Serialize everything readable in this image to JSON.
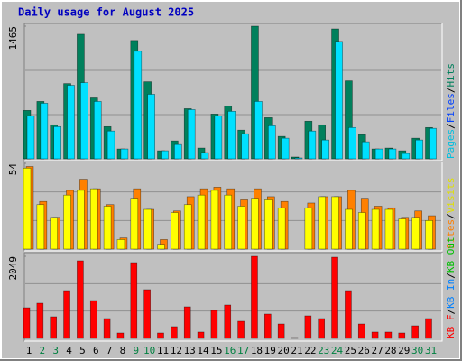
{
  "chart_data": [
    {
      "type": "bar",
      "title": "Daily usage for August 2025",
      "categories": [
        "1",
        "2",
        "3",
        "4",
        "5",
        "6",
        "7",
        "8",
        "9",
        "10",
        "11",
        "12",
        "13",
        "14",
        "15",
        "16",
        "17",
        "18",
        "19",
        "20",
        "21",
        "22",
        "23",
        "24",
        "25",
        "26",
        "27",
        "28",
        "29",
        "30",
        "31"
      ],
      "category_colors": [
        "#000000",
        "#008040",
        "#008040",
        "#000000",
        "#000000",
        "#000000",
        "#000000",
        "#000000",
        "#008040",
        "#008040",
        "#000000",
        "#000000",
        "#000000",
        "#000000",
        "#000000",
        "#008040",
        "#008040",
        "#000000",
        "#000000",
        "#000000",
        "#000000",
        "#000000",
        "#008040",
        "#008040",
        "#000000",
        "#000000",
        "#000000",
        "#000000",
        "#000000",
        "#008040",
        "#008040"
      ],
      "ylim": [
        0,
        1465
      ],
      "yticks": [
        1465
      ],
      "legend_separator": "/",
      "legend": [
        {
          "label": "Pages",
          "color": "#00c0e0"
        },
        {
          "label": "Files",
          "color": "#0040ff"
        },
        {
          "label": "Hits",
          "color": "#00805c"
        }
      ],
      "series": [
        {
          "color": "#00805c",
          "values": [
            535,
            634,
            376,
            831,
            1376,
            673,
            356,
            109,
            1307,
            851,
            89,
            198,
            554,
            119,
            495,
            584,
            317,
            1465,
            455,
            248,
            20,
            416,
            376,
            1435,
            861,
            267,
            109,
            119,
            89,
            228,
            346
          ]
        },
        {
          "color": "#00e0ff",
          "values": [
            475,
            614,
            356,
            812,
            841,
            634,
            307,
            109,
            1188,
            713,
            89,
            158,
            544,
            69,
            475,
            525,
            277,
            634,
            366,
            228,
            10,
            307,
            208,
            1297,
            346,
            188,
            109,
            109,
            59,
            208,
            337
          ]
        }
      ]
    },
    {
      "type": "bar",
      "ylim": [
        0,
        54
      ],
      "yticks": [
        54
      ],
      "legend": [
        {
          "label": "Sites",
          "color": "#ff8000"
        },
        {
          "label": "Visits",
          "color": "#e0e000"
        }
      ],
      "series": [
        {
          "color": "#ff8000",
          "values": [
            52,
            30,
            20,
            37,
            44,
            38,
            28,
            7,
            38,
            25,
            6,
            24,
            33,
            38,
            39,
            38,
            31,
            38,
            33,
            30,
            0,
            29,
            33,
            33,
            37,
            32,
            27,
            26,
            20,
            24,
            21
          ]
        },
        {
          "color": "#ffff00",
          "values": [
            51,
            28,
            20,
            34,
            37,
            38,
            27,
            6,
            32,
            25,
            3,
            23,
            28,
            34,
            37,
            34,
            27,
            32,
            31,
            26,
            0,
            26,
            33,
            33,
            25,
            23,
            25,
            25,
            19,
            20,
            18
          ]
        }
      ]
    },
    {
      "type": "bar",
      "ylim": [
        0,
        2049
      ],
      "yticks": [
        2049
      ],
      "legend": [
        {
          "label": "KB F",
          "color": "#ff0000"
        },
        {
          "label": "KB In",
          "color": "#0080ff"
        },
        {
          "label": "KB Out",
          "color": "#00c000"
        }
      ],
      "series": [
        {
          "color": "#ff0000",
          "values": [
            765,
            878,
            540,
            1193,
            1936,
            945,
            495,
            135,
            1891,
            1216,
            135,
            293,
            788,
            158,
            698,
            833,
            428,
            2049,
            608,
            360,
            23,
            563,
            495,
            2026,
            1193,
            360,
            158,
            158,
            135,
            315,
            495
          ]
        }
      ]
    }
  ]
}
